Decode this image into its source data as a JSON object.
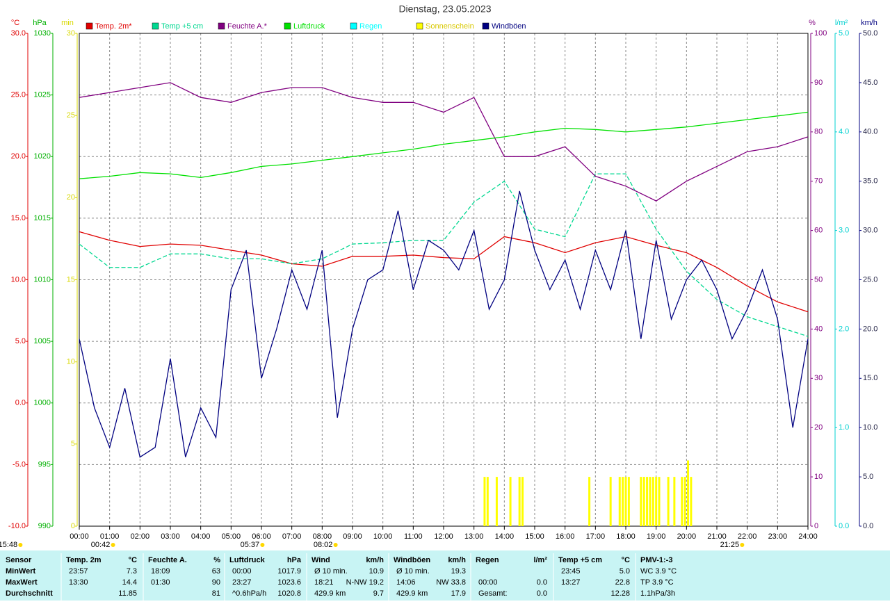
{
  "chart_data": {
    "type": "line",
    "title": "Dienstag, 23.05.2023",
    "xlim": [
      0,
      24
    ],
    "x": [
      0,
      1,
      2,
      3,
      4,
      5,
      6,
      7,
      8,
      9,
      10,
      11,
      12,
      13,
      14,
      15,
      16,
      17,
      18,
      19,
      20,
      21,
      22,
      23,
      24
    ],
    "xticks": [
      {
        "value": 0,
        "label": "00:00"
      },
      {
        "value": 1,
        "label": "01:00"
      },
      {
        "value": 2,
        "label": "02:00"
      },
      {
        "value": 3,
        "label": "03:00"
      },
      {
        "value": 4,
        "label": "04:00"
      },
      {
        "value": 5,
        "label": "05:00"
      },
      {
        "value": 6,
        "label": "06:00"
      },
      {
        "value": 7,
        "label": "07:00"
      },
      {
        "value": 8,
        "label": "08:00"
      },
      {
        "value": 9,
        "label": "09:00"
      },
      {
        "value": 10,
        "label": "10:00"
      },
      {
        "value": 11,
        "label": "11:00"
      },
      {
        "value": 12,
        "label": "12:00"
      },
      {
        "value": 13,
        "label": "13:00"
      },
      {
        "value": 14,
        "label": "14:00"
      },
      {
        "value": 15,
        "label": "15:00"
      },
      {
        "value": 16,
        "label": "16:00"
      },
      {
        "value": 17,
        "label": "17:00"
      },
      {
        "value": 18,
        "label": "18:00"
      },
      {
        "value": 19,
        "label": "19:00"
      },
      {
        "value": 20,
        "label": "20:00"
      },
      {
        "value": 21,
        "label": "21:00"
      },
      {
        "value": 22,
        "label": "22:00"
      },
      {
        "value": 23,
        "label": "23:00"
      },
      {
        "value": 24,
        "label": "24:00"
      }
    ],
    "grid": true,
    "axes": [
      {
        "id": "temp",
        "label": "°C",
        "color": "#e00000",
        "ylim": [
          -10,
          30
        ],
        "yticks": [
          {
            "value": -10,
            "label": "-10.0"
          },
          {
            "value": -5,
            "label": "-5.0"
          },
          {
            "value": 0,
            "label": "0.0"
          },
          {
            "value": 5,
            "label": "5.0"
          },
          {
            "value": 10,
            "label": "10.0"
          },
          {
            "value": 15,
            "label": "15.0"
          },
          {
            "value": 20,
            "label": "20.0"
          },
          {
            "value": 25,
            "label": "25.0"
          },
          {
            "value": 30,
            "label": "30.0"
          }
        ]
      },
      {
        "id": "hpa",
        "label": "hPa",
        "color": "#00b000",
        "ylim": [
          990,
          1030
        ],
        "yticks": [
          990,
          995,
          1000,
          1005,
          1010,
          1015,
          1020,
          1025,
          1030
        ]
      },
      {
        "id": "min",
        "label": "min",
        "color": "#d8d800",
        "ylim": [
          0,
          30
        ],
        "yticks": [
          0,
          5,
          10,
          15,
          20,
          25,
          30
        ]
      },
      {
        "id": "pct",
        "label": "%",
        "color": "#800080",
        "ylim": [
          0,
          100
        ],
        "yticks": [
          0,
          10,
          20,
          30,
          40,
          50,
          60,
          70,
          80,
          90,
          100
        ]
      },
      {
        "id": "rain",
        "label": "l/m²",
        "color": "#00d0d0",
        "ylim": [
          0,
          5
        ],
        "yticks": [
          {
            "value": 0,
            "label": "0.0"
          },
          {
            "value": 1,
            "label": "1.0"
          },
          {
            "value": 2,
            "label": "2.0"
          },
          {
            "value": 3,
            "label": "3.0"
          },
          {
            "value": 4,
            "label": "4.0"
          },
          {
            "value": 5,
            "label": "5.0"
          }
        ]
      },
      {
        "id": "kmh",
        "label": "km/h",
        "color": "#000080",
        "ylim": [
          0,
          50
        ],
        "yticks": [
          {
            "value": 0,
            "label": "0.0"
          },
          {
            "value": 5,
            "label": "5.0"
          },
          {
            "value": 10,
            "label": "10.0"
          },
          {
            "value": 15,
            "label": "15.0"
          },
          {
            "value": 20,
            "label": "20.0"
          },
          {
            "value": 25,
            "label": "25.0"
          },
          {
            "value": 30,
            "label": "30.0"
          },
          {
            "value": 35,
            "label": "35.0"
          },
          {
            "value": 40,
            "label": "40.0"
          },
          {
            "value": 45,
            "label": "45.0"
          },
          {
            "value": 50,
            "label": "50.0"
          }
        ]
      }
    ],
    "series": [
      {
        "name": "Temp. 2m*",
        "color": "#e00000",
        "axis": "temp",
        "values": [
          13.9,
          13.2,
          12.7,
          12.9,
          12.8,
          12.4,
          12.0,
          11.3,
          11.1,
          11.9,
          11.9,
          12.0,
          11.8,
          11.7,
          13.5,
          13.0,
          12.2,
          13.0,
          13.5,
          12.8,
          12.2,
          11.0,
          9.5,
          8.2,
          7.4
        ]
      },
      {
        "name": "Temp +5 cm",
        "color": "#00d890",
        "axis": "temp",
        "dashed": true,
        "values": [
          12.9,
          11.0,
          11.0,
          12.1,
          12.1,
          11.7,
          11.7,
          11.3,
          11.7,
          12.9,
          13.0,
          13.2,
          13.2,
          16.3,
          18.0,
          14.1,
          13.5,
          18.6,
          18.6,
          14.1,
          10.7,
          8.4,
          7.0,
          6.2,
          5.4
        ]
      },
      {
        "name": "Feuchte A.*",
        "color": "#800080",
        "axis": "pct",
        "values": [
          87,
          88,
          89,
          90,
          87,
          86,
          88,
          89,
          89,
          87,
          86,
          86,
          84,
          87,
          75,
          75,
          77,
          71,
          69,
          66,
          70,
          73,
          76,
          77,
          79
        ]
      },
      {
        "name": "Luftdruck",
        "color": "#00e000",
        "axis": "hpa",
        "values": [
          1018.2,
          1018.4,
          1018.7,
          1018.6,
          1018.3,
          1018.7,
          1019.2,
          1019.4,
          1019.7,
          1020.0,
          1020.3,
          1020.6,
          1021.0,
          1021.3,
          1021.6,
          1022.0,
          1022.3,
          1022.2,
          1022.0,
          1022.2,
          1022.4,
          1022.7,
          1023.0,
          1023.3,
          1023.6
        ]
      },
      {
        "name": "Regen",
        "color": "#00ffff",
        "axis": "rain"
      },
      {
        "name": "Sonnenschein",
        "color": "#ffff00",
        "axis": "min",
        "type": "bar",
        "x": [
          13.35,
          13.45,
          13.75,
          14.2,
          14.5,
          14.6,
          16.8,
          17.5,
          17.8,
          17.9,
          18.0,
          18.1,
          18.5,
          18.6,
          18.7,
          18.8,
          18.9,
          19.0,
          19.1,
          19.4,
          19.6,
          19.85,
          19.95,
          20.05,
          20.15
        ],
        "values": [
          3,
          3,
          3,
          3,
          3,
          3,
          3,
          3,
          3,
          3,
          3,
          3,
          3,
          3,
          3,
          3,
          3,
          3,
          3,
          3,
          3,
          3,
          3,
          4,
          3
        ]
      },
      {
        "name": "Windböen",
        "color": "#000080",
        "axis": "kmh",
        "x": [
          0,
          0.5,
          1,
          1.5,
          2,
          2.5,
          3,
          3.5,
          4,
          4.5,
          5,
          5.5,
          6,
          6.5,
          7,
          7.5,
          8,
          8.5,
          9,
          9.5,
          10,
          10.5,
          11,
          11.5,
          12,
          12.5,
          13,
          13.5,
          14,
          14.5,
          15,
          15.5,
          16,
          16.5,
          17,
          17.5,
          18,
          18.5,
          19,
          19.5,
          20,
          20.5,
          21,
          21.5,
          22,
          22.5,
          23,
          23.5,
          24
        ],
        "values": [
          19,
          12,
          8,
          14,
          7,
          8,
          17,
          7,
          12,
          9,
          24,
          28,
          15,
          20,
          26,
          22,
          28,
          11,
          20,
          25,
          26,
          32,
          24,
          29,
          28,
          26,
          30,
          22,
          25,
          34,
          28,
          24,
          27,
          22,
          28,
          24,
          30,
          19,
          29,
          21,
          25,
          27,
          24,
          19,
          22,
          26,
          21,
          10,
          19
        ]
      }
    ],
    "annotations": [
      {
        "x": -2.35,
        "label": "15:48"
      },
      {
        "x": 0.7,
        "label": "00:42"
      },
      {
        "x": 5.62,
        "label": "05:37"
      },
      {
        "x": 8.03,
        "label": "08:02"
      },
      {
        "x": 21.42,
        "label": "21:25"
      }
    ]
  },
  "table": {
    "columns": [
      {
        "head": "Sensor",
        "rows": [
          "MinWert",
          "MaxWert",
          "Durchschnitt"
        ]
      },
      {
        "head": "Temp. 2m",
        "unit": "°C",
        "rows": [
          [
            "23:57",
            "7.3"
          ],
          [
            "13:30",
            "14.4"
          ],
          [
            null,
            "11.85"
          ]
        ]
      },
      {
        "head": "Feuchte A.",
        "unit": "%",
        "rows": [
          [
            "18:09",
            "63"
          ],
          [
            "01:30",
            "90"
          ],
          [
            null,
            "81"
          ]
        ]
      },
      {
        "head": "Luftdruck",
        "unit": "hPa",
        "rows": [
          [
            "00:00",
            "1017.9"
          ],
          [
            "23:27",
            "1023.6"
          ],
          [
            "^0.6hPa/h",
            "1020.8"
          ]
        ]
      },
      {
        "head": "Wind",
        "unit": "km/h",
        "rows": [
          [
            "Ø 10 min.",
            "10.9"
          ],
          [
            "18:21",
            "N-NW 19.2"
          ],
          [
            "429.9 km",
            "9.7"
          ]
        ]
      },
      {
        "head": "Windböen",
        "unit": "km/h",
        "rows": [
          [
            "Ø 10 min.",
            "19.3"
          ],
          [
            "14:06",
            "NW 33.8"
          ],
          [
            "429.9 km",
            "17.9"
          ]
        ]
      },
      {
        "head": "Regen",
        "unit": "l/m²",
        "rows": [
          [
            null,
            null
          ],
          [
            "00:00",
            "0.0"
          ],
          [
            "Gesamt:",
            "0.0"
          ]
        ]
      },
      {
        "head": "Temp +5 cm",
        "unit": "°C",
        "rows": [
          [
            "23:45",
            "5.0"
          ],
          [
            "13:27",
            "22.8"
          ],
          [
            null,
            "12.28"
          ]
        ]
      },
      {
        "head": "PMV-1:-3",
        "rows": [
          [
            "WC 3.9 °C"
          ],
          [
            "TP 3.9 °C"
          ],
          [
            "1.1hPa/3h"
          ]
        ]
      }
    ]
  }
}
